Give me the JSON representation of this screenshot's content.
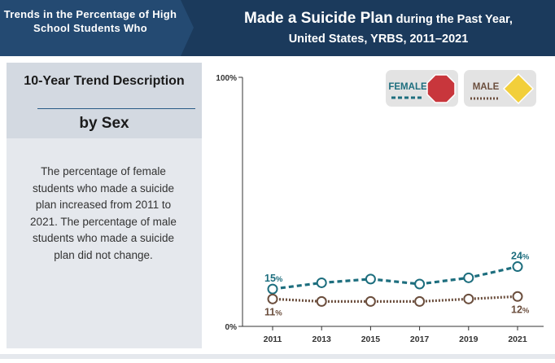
{
  "header": {
    "left_title": "Trends in the Percentage of High School Students Who",
    "right_title_main": "Made a Suicide Plan",
    "right_title_rest": "during the Past Year,",
    "right_subtitle": "United States, YRBS, 2011–2021"
  },
  "left_panel": {
    "trend_title": "10-Year Trend Description",
    "by_label": "by Sex",
    "description": "The percentage of female students who made a suicide plan increased from 2011 to 2021. The percentage of male students who made a suicide plan did not change."
  },
  "legend": {
    "female": "FEMALE",
    "male": "MALE"
  },
  "colors": {
    "female": "#1d6e7e",
    "male": "#6b4e3d",
    "header_bg": "#1b3a5c",
    "stop_sign": "#c8363c",
    "yield_sign": "#f2cf3b"
  },
  "icons": {
    "female": "stop-sign-octagon",
    "male": "yield-sign-diamond"
  },
  "chart_data": {
    "type": "line",
    "x": [
      2011,
      2013,
      2015,
      2017,
      2019,
      2021
    ],
    "x_tick_labels": [
      "2011",
      "2013",
      "2015",
      "2017",
      "2019",
      "2021"
    ],
    "ylim": [
      0,
      100
    ],
    "y_tick_labels": [
      "100%",
      "0%"
    ],
    "series": [
      {
        "name": "FEMALE",
        "values": [
          15,
          17.5,
          19,
          17,
          19.5,
          24
        ],
        "style": "dashed"
      },
      {
        "name": "MALE",
        "values": [
          11,
          10,
          10,
          10,
          11,
          12
        ],
        "style": "dotted"
      }
    ],
    "annotations": [
      {
        "series": "FEMALE",
        "x": 2011,
        "text": "15%"
      },
      {
        "series": "FEMALE",
        "x": 2021,
        "text": "24%"
      },
      {
        "series": "MALE",
        "x": 2011,
        "text": "11%"
      },
      {
        "series": "MALE",
        "x": 2021,
        "text": "12%"
      }
    ]
  }
}
